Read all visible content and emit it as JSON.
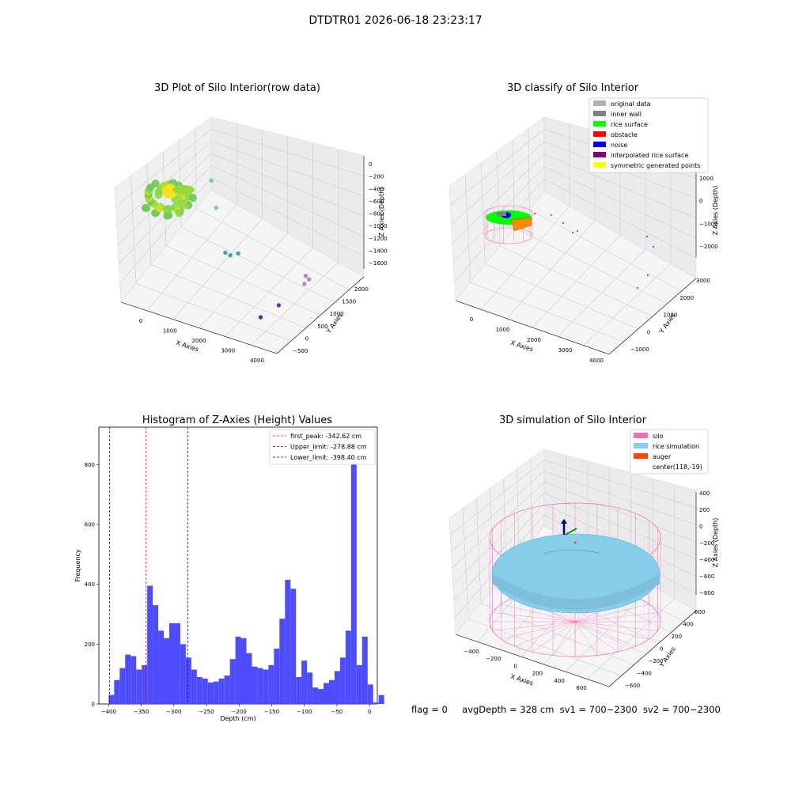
{
  "figure": {
    "suptitle": "DTDTR01 2026-06-18 23:23:17",
    "footer": {
      "flag": "flag = 0",
      "avg_depth": "avgDepth = 328 cm",
      "sv1": "sv1 = 700~2300",
      "sv2": "sv2 = 700~2300"
    }
  },
  "chart_data": [
    {
      "type": "scatter",
      "projection": "3d",
      "title": "3D Plot of Silo Interior(row data)",
      "xlabel": "X Axies",
      "ylabel": "Y Axies",
      "zlabel": "Z Axies (Depth)",
      "x_ticks": [
        "0",
        "1000",
        "2000",
        "3000",
        "4000"
      ],
      "y_ticks": [
        "−500",
        "0",
        "500",
        "1000",
        "1500",
        "2000"
      ],
      "z_ticks": [
        "0",
        "−200",
        "−400",
        "−600",
        "−800",
        "−1000",
        "−1200",
        "−1400",
        "−1600"
      ],
      "colormap": "viridis",
      "points": [
        {
          "x": 200,
          "y": 1900,
          "z": -420
        },
        {
          "x": 700,
          "y": 1500,
          "z": -650
        },
        {
          "x": 1600,
          "y": 800,
          "z": -1000
        },
        {
          "x": 1750,
          "y": 800,
          "z": -1020
        },
        {
          "x": 1900,
          "y": 900,
          "z": -1000
        },
        {
          "x": 3400,
          "y": 1500,
          "z": -1450
        },
        {
          "x": 3500,
          "y": 1500,
          "z": -1500
        },
        {
          "x": 3450,
          "y": 1400,
          "z": -1550
        },
        {
          "x": 3300,
          "y": 700,
          "z": -1650
        },
        {
          "x": 3200,
          "y": 200,
          "z": -1650
        }
      ]
    },
    {
      "type": "scatter",
      "projection": "3d",
      "title": "3D classify of Silo Interior",
      "xlabel": "X Axies",
      "ylabel": "Y Axies",
      "zlabel": "Z Axies (Depth)",
      "x_ticks": [
        "0",
        "1000",
        "2000",
        "3000",
        "4000"
      ],
      "y_ticks": [
        "−1000",
        "0",
        "1000",
        "2000",
        "3000"
      ],
      "z_ticks": [
        "1000",
        "0",
        "−1000",
        "−2000"
      ],
      "legend_position": "top-right",
      "legend": [
        {
          "label": "original data",
          "color": "#b0b0b0"
        },
        {
          "label": "inner wall",
          "color": "#808080"
        },
        {
          "label": "rice surface",
          "color": "#00ff00"
        },
        {
          "label": "obstacle",
          "color": "#ff0000"
        },
        {
          "label": "noise",
          "color": "#0000ff"
        },
        {
          "label": "interpolated rice surface",
          "color": "#800080"
        },
        {
          "label": "symmetric generated points",
          "color": "#ffff00"
        }
      ]
    },
    {
      "type": "bar",
      "title": "Histogram of Z-Axies (Height) Values",
      "xlabel": "Depth (cm)",
      "ylabel": "Frequency",
      "xlim": [
        -415,
        12
      ],
      "ylim": [
        0,
        925
      ],
      "x_ticks": [
        -400,
        -350,
        -300,
        -250,
        -200,
        -150,
        -100,
        -50,
        0
      ],
      "y_ticks": [
        0,
        200,
        400,
        600,
        800
      ],
      "bar_color": "#4d4dff",
      "bins": {
        "start": -400,
        "width": 8.45,
        "counts": [
          30,
          80,
          120,
          165,
          160,
          115,
          130,
          395,
          330,
          245,
          220,
          270,
          270,
          200,
          155,
          115,
          90,
          85,
          72,
          75,
          85,
          95,
          150,
          225,
          220,
          170,
          125,
          120,
          115,
          130,
          185,
          285,
          415,
          385,
          90,
          145,
          105,
          55,
          50,
          70,
          80,
          110,
          155,
          245,
          870,
          130,
          225,
          65,
          5,
          30
        ]
      },
      "lines": [
        {
          "label": "first_peak: -342.62 cm",
          "x": -342.62,
          "color": "#ff0000"
        },
        {
          "label": "Upper_limit: -278.88 cm",
          "x": -278.88,
          "color": "#0000aa"
        },
        {
          "label": "Lower_limit: -398.40 cm",
          "x": -398.4,
          "color": "#0000aa"
        }
      ],
      "legend_position": "top-right"
    },
    {
      "type": "area",
      "projection": "3d",
      "title": "3D simulation of Silo Interior",
      "xlabel": "X Axies",
      "ylabel": "Y Axies",
      "zlabel": "Z Axies (Depth)",
      "x_ticks": [
        "−400",
        "−200",
        "0",
        "200",
        "400",
        "600"
      ],
      "y_ticks": [
        "−600",
        "−400",
        "−200",
        "0",
        "200",
        "400",
        "600"
      ],
      "z_ticks": [
        "400",
        "200",
        "0",
        "−200",
        "−400",
        "−600",
        "−800"
      ],
      "legend_position": "top-right",
      "legend": [
        {
          "label": "silo",
          "color": "#ff69b4"
        },
        {
          "label": "rice simulation",
          "color": "#87ceeb"
        },
        {
          "label": "auger",
          "color": "#ff4500"
        },
        {
          "label": "center(118,-19)",
          "color": "none"
        }
      ]
    }
  ]
}
